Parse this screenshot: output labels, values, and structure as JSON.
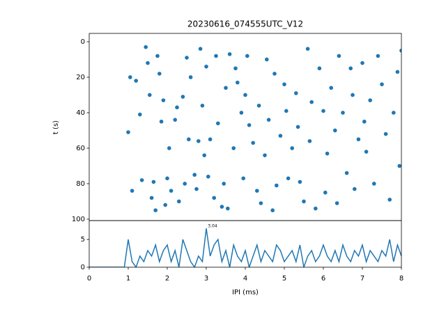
{
  "chart_data": [
    {
      "type": "scatter",
      "title": "20230616_074555UTC_V12",
      "ylabel": "t (s)",
      "color": "#1f77b4",
      "xlim": [
        0,
        8
      ],
      "ylim": [
        -4.7,
        100.8
      ],
      "inverted_y": true,
      "yticks": [
        0,
        20,
        40,
        60,
        80,
        100
      ],
      "x": [
        1.0,
        1.05,
        1.1,
        1.2,
        1.3,
        1.35,
        1.45,
        1.5,
        1.55,
        1.6,
        1.65,
        1.7,
        1.75,
        1.8,
        1.85,
        1.9,
        1.95,
        2.0,
        2.05,
        2.1,
        2.2,
        2.25,
        2.3,
        2.4,
        2.45,
        2.5,
        2.55,
        2.6,
        2.7,
        2.75,
        2.8,
        2.85,
        2.9,
        2.95,
        3.0,
        3.05,
        3.1,
        3.2,
        3.25,
        3.3,
        3.4,
        3.45,
        3.5,
        3.55,
        3.6,
        3.7,
        3.75,
        3.8,
        3.9,
        3.95,
        4.0,
        4.05,
        4.1,
        4.2,
        4.3,
        4.35,
        4.4,
        4.5,
        4.55,
        4.6,
        4.7,
        4.75,
        4.8,
        4.9,
        5.0,
        5.05,
        5.1,
        5.2,
        5.3,
        5.35,
        5.4,
        5.5,
        5.6,
        5.65,
        5.7,
        5.8,
        5.9,
        6.0,
        6.05,
        6.1,
        6.2,
        6.3,
        6.35,
        6.4,
        6.5,
        6.6,
        6.7,
        6.75,
        6.8,
        6.9,
        7.0,
        7.05,
        7.1,
        7.2,
        7.3,
        7.4,
        7.5,
        7.6,
        7.7,
        7.8,
        7.9,
        7.95,
        8.0
      ],
      "values": [
        51,
        20,
        84,
        22,
        41,
        78,
        3,
        12,
        30,
        88,
        79,
        95,
        8,
        18,
        45,
        33,
        92,
        77,
        60,
        84,
        44,
        37,
        90,
        31,
        80,
        9,
        55,
        20,
        75,
        83,
        56,
        4,
        36,
        64,
        14,
        76,
        55,
        88,
        8,
        46,
        93,
        80,
        26,
        94,
        7,
        60,
        15,
        23,
        40,
        77,
        30,
        8,
        47,
        57,
        84,
        36,
        91,
        64,
        10,
        44,
        95,
        18,
        81,
        53,
        24,
        39,
        77,
        60,
        29,
        48,
        79,
        90,
        4,
        56,
        34,
        94,
        15,
        39,
        85,
        63,
        26,
        50,
        91,
        8,
        40,
        74,
        15,
        30,
        83,
        55,
        12,
        45,
        62,
        33,
        80,
        8,
        24,
        52,
        89,
        40,
        17,
        70,
        5
      ]
    },
    {
      "type": "line",
      "xlabel": "IPI (ms)",
      "color": "#1f77b4",
      "xlim": [
        0,
        8
      ],
      "xticks": [
        0,
        1,
        2,
        3,
        4,
        5,
        6,
        7,
        8
      ],
      "ylim": [
        0,
        8.4
      ],
      "yticks": [
        0,
        5
      ],
      "annotation": {
        "text": "3.04",
        "x": 3.04,
        "y": 7
      },
      "x": [
        0,
        0.1,
        0.2,
        0.3,
        0.4,
        0.5,
        0.6,
        0.7,
        0.8,
        0.9,
        1.0,
        1.1,
        1.2,
        1.3,
        1.4,
        1.5,
        1.6,
        1.7,
        1.8,
        1.9,
        2.0,
        2.1,
        2.2,
        2.3,
        2.4,
        2.5,
        2.6,
        2.7,
        2.8,
        2.9,
        3.0,
        3.1,
        3.2,
        3.3,
        3.4,
        3.5,
        3.6,
        3.7,
        3.8,
        3.9,
        4.0,
        4.1,
        4.2,
        4.3,
        4.4,
        4.5,
        4.6,
        4.7,
        4.8,
        4.9,
        5.0,
        5.1,
        5.2,
        5.3,
        5.4,
        5.5,
        5.6,
        5.7,
        5.8,
        5.9,
        6.0,
        6.1,
        6.2,
        6.3,
        6.4,
        6.5,
        6.6,
        6.7,
        6.8,
        6.9,
        7.0,
        7.1,
        7.2,
        7.3,
        7.4,
        7.5,
        7.6,
        7.7,
        7.8,
        7.9,
        8.0
      ],
      "values": [
        0,
        0,
        0,
        0,
        0,
        0,
        0,
        0,
        0,
        0,
        5,
        1,
        0,
        2,
        1,
        3,
        2,
        4,
        1,
        3,
        4,
        1,
        3,
        0,
        5,
        3,
        1,
        0,
        2,
        1,
        7,
        2,
        4,
        5,
        1,
        3,
        0,
        4,
        2,
        1,
        3,
        0,
        2,
        4,
        1,
        3,
        2,
        1,
        4,
        3,
        1,
        2,
        3,
        1,
        4,
        0,
        2,
        3,
        1,
        2,
        4,
        2,
        1,
        3,
        1,
        4,
        2,
        1,
        3,
        2,
        4,
        1,
        3,
        2,
        1,
        3,
        2,
        5,
        1,
        4,
        2
      ]
    }
  ]
}
